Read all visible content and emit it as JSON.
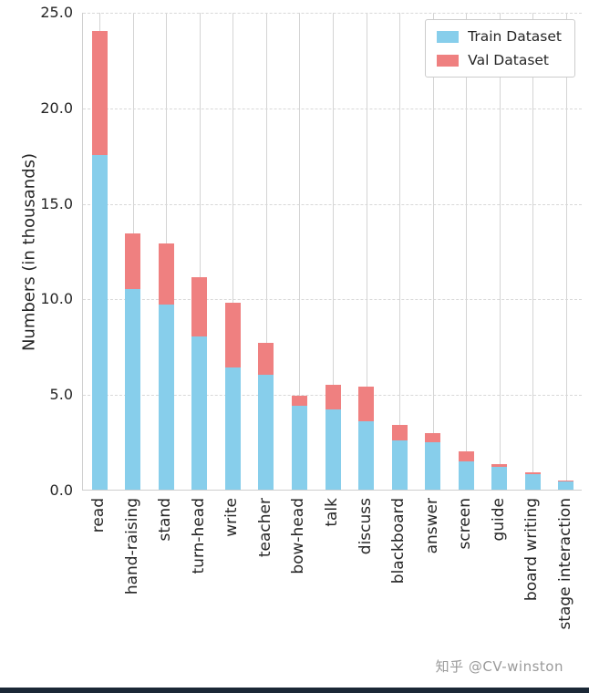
{
  "chart_data": {
    "type": "bar",
    "stacked": true,
    "title": "",
    "xlabel": "",
    "ylabel": "Numbers (in thousands)",
    "ylim": [
      0,
      25
    ],
    "grid": true,
    "legend_position": "upper-right",
    "categories": [
      "read",
      "hand-raising",
      "stand",
      "turn-head",
      "write",
      "teacher",
      "bow-head",
      "talk",
      "discuss",
      "blackboard",
      "answer",
      "screen",
      "guide",
      "board writing",
      "stage interaction"
    ],
    "series": [
      {
        "name": "Train Dataset",
        "color": "#87ceeb",
        "values": [
          17.5,
          10.5,
          9.7,
          8.0,
          6.4,
          6.0,
          4.4,
          4.2,
          3.6,
          2.6,
          2.5,
          1.5,
          1.2,
          0.8,
          0.45
        ]
      },
      {
        "name": "Val Dataset",
        "color": "#ef8080",
        "values": [
          6.5,
          2.9,
          3.2,
          3.1,
          3.4,
          1.7,
          0.5,
          1.3,
          1.8,
          0.8,
          0.45,
          0.5,
          0.15,
          0.1,
          0.05
        ]
      }
    ],
    "yticks": [
      {
        "label": "0.0",
        "value": 0
      },
      {
        "label": "5.0",
        "value": 5
      },
      {
        "label": "10.0",
        "value": 10
      },
      {
        "label": "15.0",
        "value": 15
      },
      {
        "label": "20.0",
        "value": 20
      },
      {
        "label": "25.0",
        "value": 25
      }
    ]
  },
  "watermark": "知乎 @CV-winston"
}
